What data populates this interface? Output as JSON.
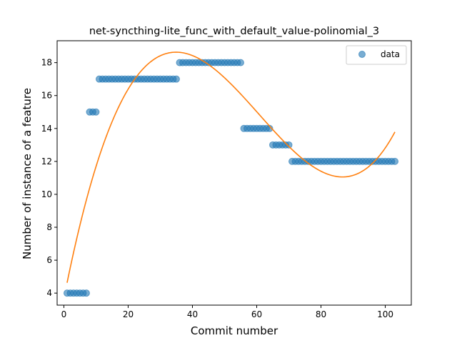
{
  "chart_data": {
    "type": "scatter",
    "title": "net-syncthing-lite_func_with_default_value-polinomial_3",
    "xlabel": "Commit number",
    "ylabel": "Number of instance of a feature",
    "xlim": [
      -2.1,
      108.1
    ],
    "ylim": [
      3.27,
      19.33
    ],
    "xticks": [
      0,
      20,
      40,
      60,
      80,
      100
    ],
    "yticks": [
      4,
      6,
      8,
      10,
      12,
      14,
      16,
      18
    ],
    "legend": {
      "placement": "top-right",
      "entries": [
        "data"
      ]
    },
    "grid": false,
    "series": [
      {
        "name": "data",
        "kind": "scatter",
        "color": "#1f77b4",
        "x": [
          1,
          2,
          3,
          4,
          5,
          6,
          7,
          8,
          9,
          10,
          11,
          12,
          13,
          14,
          15,
          16,
          17,
          18,
          19,
          20,
          21,
          22,
          23,
          24,
          25,
          26,
          27,
          28,
          29,
          30,
          31,
          32,
          33,
          34,
          35,
          36,
          37,
          38,
          39,
          40,
          41,
          42,
          43,
          44,
          45,
          46,
          47,
          48,
          49,
          50,
          51,
          52,
          53,
          54,
          55,
          56,
          57,
          58,
          59,
          60,
          61,
          62,
          63,
          64,
          65,
          66,
          67,
          68,
          69,
          70,
          71,
          72,
          73,
          74,
          75,
          76,
          77,
          78,
          79,
          80,
          81,
          82,
          83,
          84,
          85,
          86,
          87,
          88,
          89,
          90,
          91,
          92,
          93,
          94,
          95,
          96,
          97,
          98,
          99,
          100,
          101,
          102,
          103
        ],
        "y": [
          4,
          4,
          4,
          4,
          4,
          4,
          4,
          15,
          15,
          15,
          17,
          17,
          17,
          17,
          17,
          17,
          17,
          17,
          17,
          17,
          17,
          17,
          17,
          17,
          17,
          17,
          17,
          17,
          17,
          17,
          17,
          17,
          17,
          17,
          17,
          18,
          18,
          18,
          18,
          18,
          18,
          18,
          18,
          18,
          18,
          18,
          18,
          18,
          18,
          18,
          18,
          18,
          18,
          18,
          18,
          14,
          14,
          14,
          14,
          14,
          14,
          14,
          14,
          14,
          13,
          13,
          13,
          13,
          13,
          13,
          12,
          12,
          12,
          12,
          12,
          12,
          12,
          12,
          12,
          12,
          12,
          12,
          12,
          12,
          12,
          12,
          12,
          12,
          12,
          12,
          12,
          12,
          12,
          12,
          12,
          12,
          12,
          12,
          12,
          12,
          12,
          12,
          12
        ]
      },
      {
        "name": "",
        "kind": "line",
        "color": "#ff7f0e",
        "fit": "polynomial degree 3",
        "x_range": [
          1,
          103
        ]
      }
    ]
  }
}
